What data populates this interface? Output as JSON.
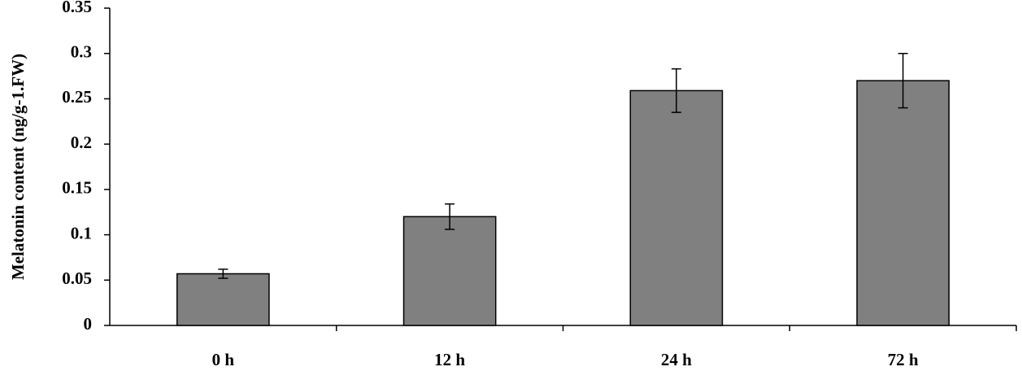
{
  "chart_data": {
    "type": "bar",
    "y_label": "Melatonin content (ng/g-1.FW)",
    "categories": [
      "0 h",
      "12 h",
      "24 h",
      "72 h"
    ],
    "values": [
      0.057,
      0.12,
      0.259,
      0.27
    ],
    "errors": [
      0.005,
      0.014,
      0.024,
      0.03
    ],
    "color": "#808080",
    "ylim": [
      0,
      0.35
    ],
    "yticks": [
      0,
      0.05,
      0.1,
      0.15,
      0.2,
      0.25,
      0.3,
      0.35
    ],
    "grid": false
  }
}
